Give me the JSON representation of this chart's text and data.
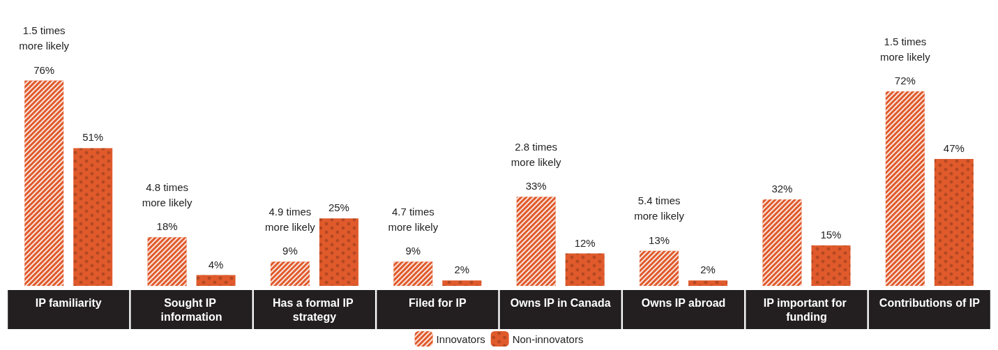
{
  "chart_data": {
    "type": "bar",
    "categories": [
      "IP familiarity",
      "Sought IP information",
      "Has a formal IP strategy",
      "Filed for IP",
      "Owns IP in Canada",
      "Owns IP abroad",
      "IP important for funding",
      "Contributions of IP"
    ],
    "series": [
      {
        "name": "Innovators",
        "color": "#e05a2b",
        "values": [
          76,
          18,
          9,
          9,
          33,
          13,
          32,
          72
        ],
        "value_labels": [
          "76%",
          "18%",
          "9%",
          "9%",
          "33%",
          "13%",
          "32%",
          "72%"
        ]
      },
      {
        "name": "Non-innovators",
        "color": "#e05a2b",
        "values": [
          51,
          4,
          25,
          2,
          12,
          2,
          15,
          47
        ],
        "value_labels": [
          "51%",
          "4%",
          "25%",
          "2%",
          "12%",
          "2%",
          "15%",
          "47%"
        ]
      }
    ],
    "annotations": [
      "1.5 times\nmore likely",
      "4.8 times\nmore likely",
      "4.9 times\nmore likely",
      "4.7 times\nmore likely",
      "2.8 times\nmore likely",
      "5.4 times\nmore likely",
      "1.5 times\nmore likely"
    ],
    "legend": "bottom"
  }
}
